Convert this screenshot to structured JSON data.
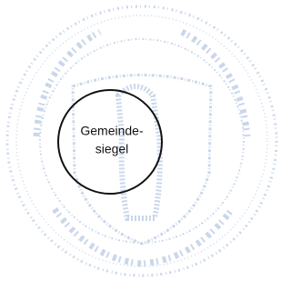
{
  "seal": {
    "label_lines": [
      "Gemeinde-",
      "siegel"
    ]
  }
}
